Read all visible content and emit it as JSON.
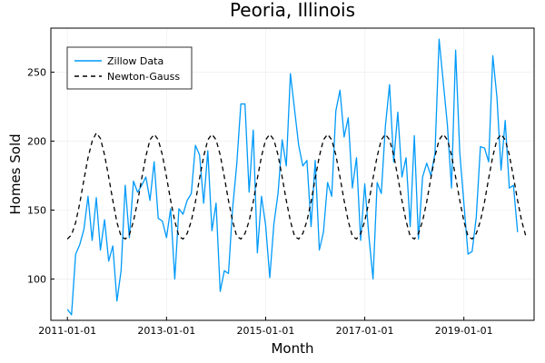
{
  "chart_data": {
    "type": "line",
    "title": "Peoria, Illinois",
    "xlabel": "Month",
    "ylabel": "Homes Sold",
    "xlim": [
      "2010-09-01",
      "2020-06-01"
    ],
    "ylim": [
      70,
      282
    ],
    "x_ticks": [
      "2011-01-01",
      "2013-01-01",
      "2015-01-01",
      "2017-01-01",
      "2019-01-01"
    ],
    "y_ticks": [
      100,
      150,
      200,
      250
    ],
    "grid": true,
    "legend_position": "top-left",
    "x_start": "2011-01-01",
    "x_step": "1 month",
    "series": [
      {
        "name": "Zillow Data",
        "color": "#009af9",
        "style": "solid",
        "values": [
          78,
          74,
          118,
          125,
          136,
          160,
          128,
          159,
          121,
          143,
          113,
          124,
          84,
          106,
          168,
          130,
          171,
          163,
          168,
          174,
          157,
          185,
          144,
          142,
          130,
          151,
          100,
          151,
          147,
          157,
          162,
          197,
          190,
          155,
          193,
          135,
          155,
          91,
          106,
          104,
          151,
          183,
          227,
          227,
          163,
          208,
          119,
          160,
          139,
          101,
          140,
          162,
          201,
          182,
          249,
          223,
          197,
          182,
          186,
          138,
          186,
          121,
          134,
          170,
          160,
          222,
          237,
          203,
          217,
          166,
          188,
          128,
          169,
          131,
          100,
          170,
          162,
          211,
          241,
          185,
          221,
          174,
          188,
          138,
          204,
          129,
          174,
          184,
          175,
          191,
          274,
          243,
          212,
          166,
          266,
          192,
          155,
          118,
          120,
          145,
          196,
          195,
          185,
          262,
          232,
          179,
          215,
          166,
          168,
          134
        ]
      },
      {
        "name": "Newton-Gauss",
        "color": "#000000",
        "style": "dashed",
        "values": [
          129,
          132,
          141,
          155,
          172,
          188,
          200,
          206,
          202,
          190,
          174,
          157,
          141,
          131,
          129,
          132,
          142,
          156,
          173,
          189,
          201,
          205,
          201,
          190,
          174,
          157,
          142,
          131,
          129,
          133,
          142,
          156,
          173,
          189,
          201,
          205,
          201,
          190,
          174,
          157,
          142,
          131,
          129,
          133,
          142,
          156,
          173,
          189,
          201,
          205,
          201,
          190,
          174,
          157,
          142,
          131,
          129,
          133,
          142,
          156,
          173,
          189,
          201,
          205,
          201,
          190,
          174,
          157,
          142,
          131,
          129,
          133,
          142,
          156,
          173,
          189,
          201,
          205,
          201,
          190,
          174,
          157,
          142,
          131,
          129,
          133,
          142,
          156,
          173,
          189,
          201,
          205,
          201,
          190,
          174,
          157,
          142,
          131,
          129,
          133,
          142,
          156,
          173,
          189,
          201,
          205,
          201,
          190,
          174,
          157,
          142,
          131
        ]
      }
    ]
  }
}
